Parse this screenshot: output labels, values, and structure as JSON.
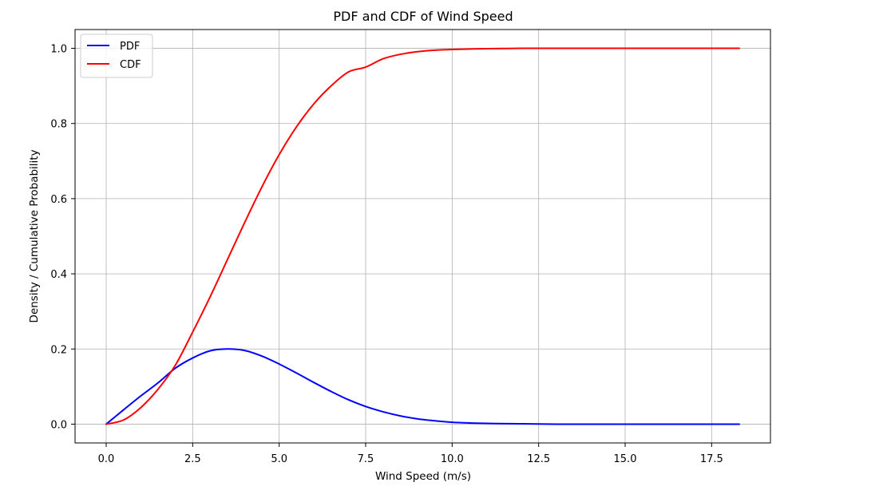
{
  "chart_data": {
    "type": "line",
    "title": "PDF and CDF of Wind Speed",
    "xlabel": "Wind Speed (m/s)",
    "ylabel": "Density / Cumulative Probability",
    "xlim": [
      -0.9,
      19.2
    ],
    "ylim": [
      -0.05,
      1.05
    ],
    "x_ticks": [
      0.0,
      2.5,
      5.0,
      7.5,
      10.0,
      12.5,
      15.0,
      17.5
    ],
    "x_tick_labels": [
      "0.0",
      "2.5",
      "5.0",
      "7.5",
      "10.0",
      "12.5",
      "15.0",
      "17.5"
    ],
    "y_ticks": [
      0.0,
      0.2,
      0.4,
      0.6,
      0.8,
      1.0
    ],
    "y_tick_labels": [
      "0.0",
      "0.2",
      "0.4",
      "0.6",
      "0.8",
      "1.0"
    ],
    "grid": true,
    "legend_position": "top-left",
    "x": [
      0,
      0.5,
      1,
      1.5,
      2,
      2.5,
      3,
      3.5,
      4,
      4.5,
      5,
      5.5,
      6,
      6.5,
      7,
      7.5,
      8,
      8.5,
      9,
      9.5,
      10,
      11,
      12,
      13,
      14,
      15,
      16,
      17,
      18.3
    ],
    "series": [
      {
        "name": "PDF",
        "color": "#0000ff",
        "values": [
          0,
          0.038,
          0.075,
          0.11,
          0.149,
          0.176,
          0.195,
          0.2,
          0.196,
          0.181,
          0.16,
          0.136,
          0.111,
          0.087,
          0.065,
          0.047,
          0.033,
          0.022,
          0.014,
          0.009,
          0.005,
          0.002,
          0.001,
          0,
          0,
          0,
          0,
          0,
          0
        ]
      },
      {
        "name": "CDF",
        "color": "#ff0000",
        "values": [
          0,
          0.011,
          0.044,
          0.093,
          0.157,
          0.245,
          0.338,
          0.437,
          0.536,
          0.631,
          0.717,
          0.791,
          0.852,
          0.9,
          0.937,
          0.95,
          0.972,
          0.984,
          0.991,
          0.995,
          0.997,
          0.999,
          1.0,
          1.0,
          1.0,
          1.0,
          1.0,
          1.0,
          1.0
        ]
      }
    ]
  }
}
